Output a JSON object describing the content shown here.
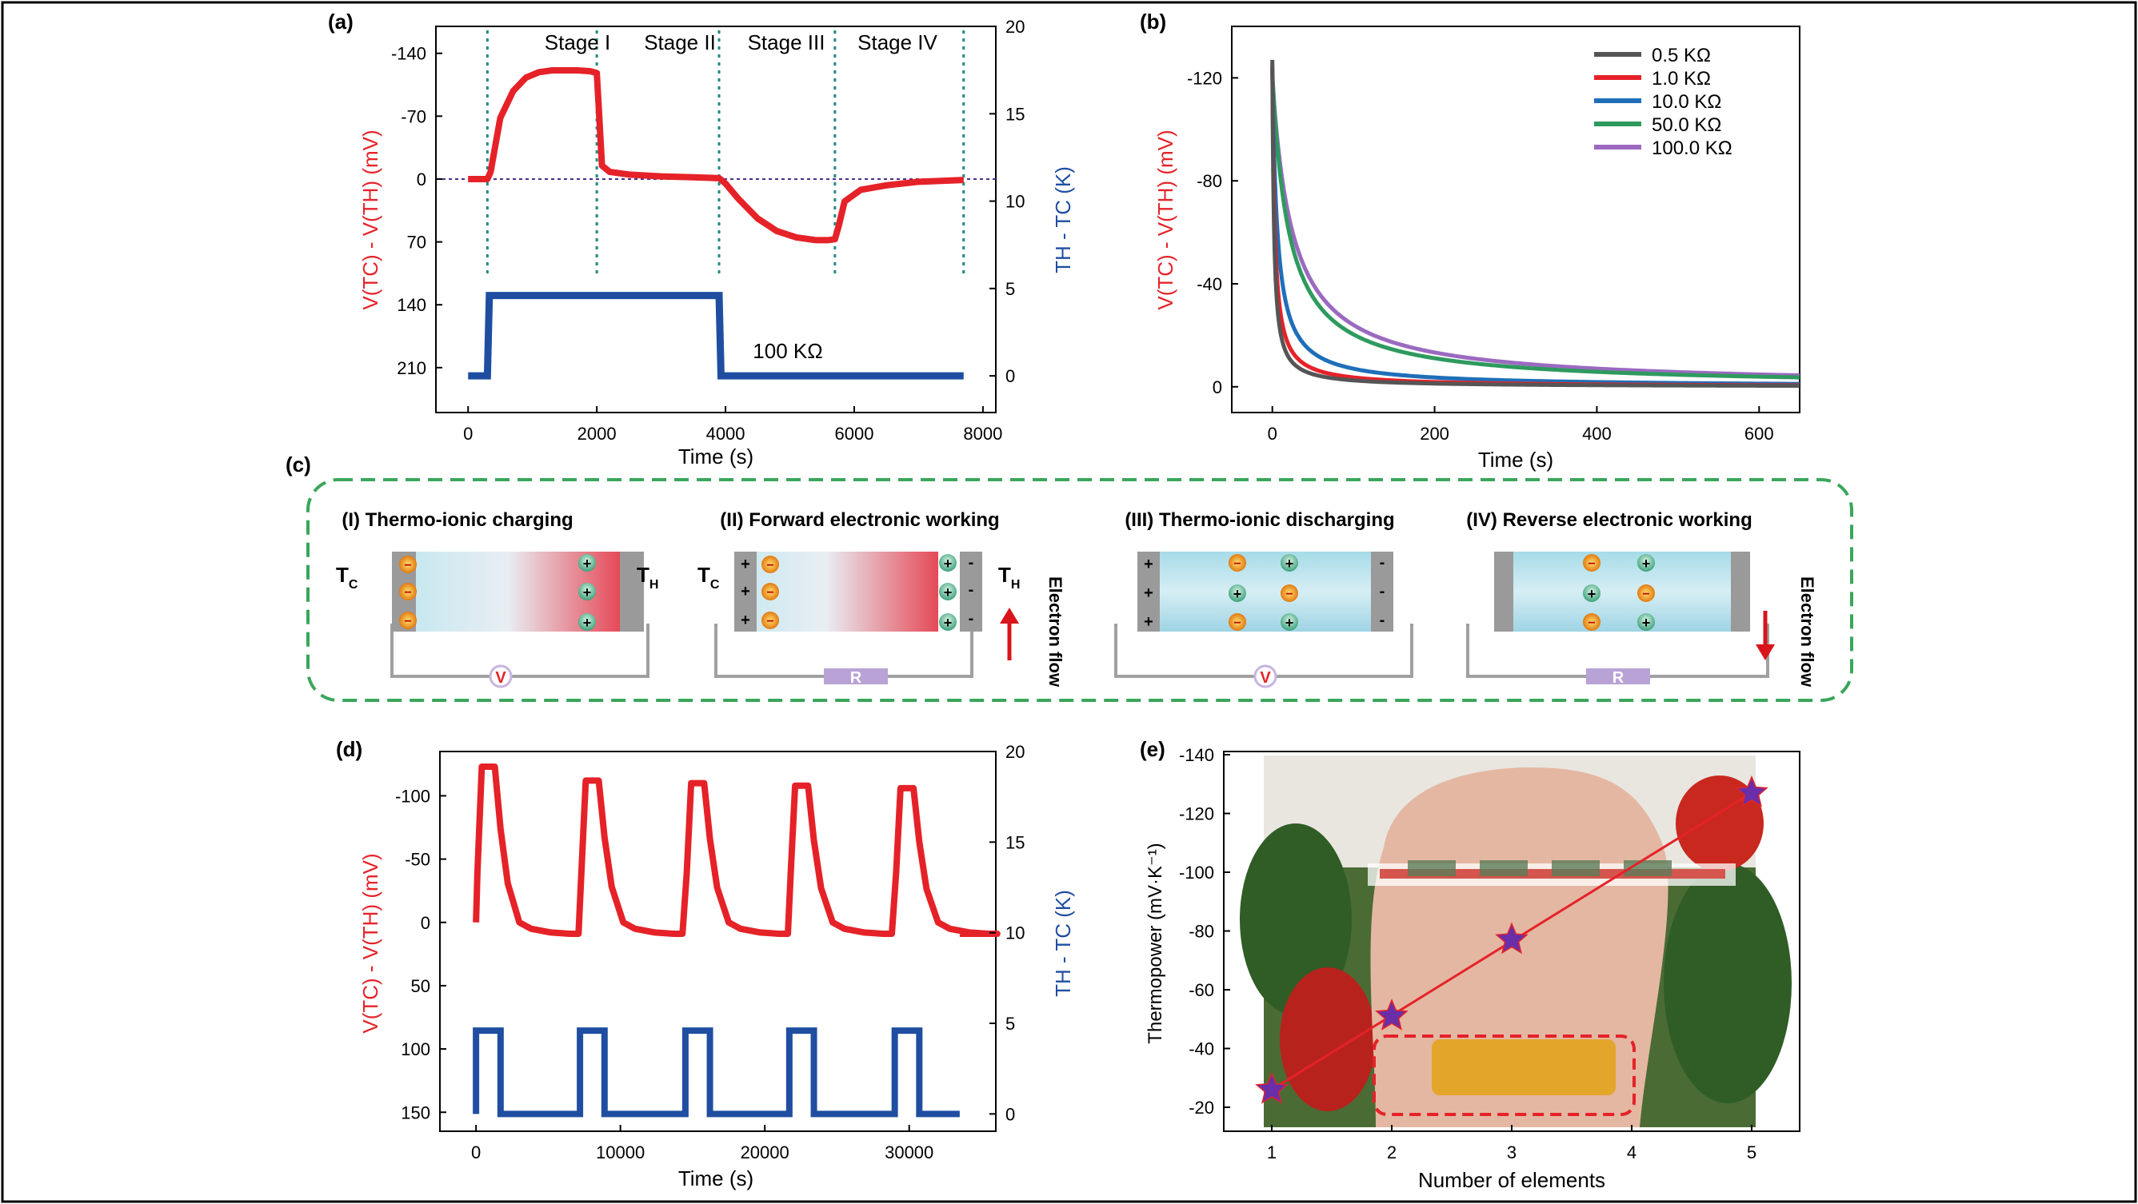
{
  "colors": {
    "red": "#e52228",
    "blue": "#1f4ea1",
    "teal": "#1f8a80",
    "purple_dotted": "#4b2f8f",
    "green_dash": "#3aa65b",
    "gray_electrode": "#9a9a9a",
    "star": "#6a2fa8",
    "photo_bg": "#3c5f2a"
  },
  "panels": {
    "a": {
      "label": "(a)",
      "stages": [
        "Stage I",
        "Stage II",
        "Stage III",
        "Stage IV"
      ],
      "resistance_label": "100 KΩ",
      "xlabel": "Time (s)",
      "ylabel_left": "V(TC) - V(TH) (mV)",
      "ylabel_right": "TH - TC (K)"
    },
    "b": {
      "label": "(b)",
      "xlabel": "Time (s)",
      "ylabel": "V(TC) - V(TH) (mV)"
    },
    "c": {
      "label": "(c)",
      "steps": [
        {
          "title": "(I) Thermo-ionic charging",
          "meter": "V",
          "left_label": "T",
          "left_sub": "C",
          "right_label": "T",
          "right_sub": "H"
        },
        {
          "title": "(II) Forward electronic working",
          "meter": "R",
          "left_label": "T",
          "left_sub": "C",
          "right_label": "T",
          "right_sub": "H",
          "flow": "Electron flow"
        },
        {
          "title": "(III) Thermo-ionic discharging",
          "meter": "V"
        },
        {
          "title": "(IV) Reverse electronic working",
          "meter": "R",
          "flow": "Electron flow"
        }
      ]
    },
    "d": {
      "label": "(d)",
      "xlabel": "Time (s)",
      "ylabel_left": "V(TC) - V(TH) (mV)",
      "ylabel_right": "TH - TC (K)"
    },
    "e": {
      "label": "(e)",
      "xlabel": "Number of elements",
      "ylabel": "Thermopower (mV·K⁻¹)"
    }
  },
  "chart_data": [
    {
      "panel": "a",
      "type": "line",
      "xlabel": "Time (s)",
      "ylabel": "V(TC) - V(TH) (mV)",
      "y2label": "TH - TC (K)",
      "xlim": [
        -500,
        8200
      ],
      "ylim": [
        -170,
        260
      ],
      "y_inverted": true,
      "y2lim": [
        -1,
        20
      ],
      "xticks": [
        "0",
        "2000",
        "4000",
        "6000",
        "8000"
      ],
      "yticks": [
        "-140",
        "-70",
        "0",
        "70",
        "140",
        "210"
      ],
      "y2ticks": [
        "0",
        "5",
        "10",
        "15",
        "20"
      ],
      "stage_boundaries": [
        300,
        2000,
        3900,
        5700,
        7700
      ],
      "reference_line": 0,
      "series": [
        {
          "name": "",
          "axis": "left",
          "color": "#e52228",
          "x": [
            0,
            300,
            350,
            500,
            700,
            900,
            1100,
            1300,
            1500,
            1700,
            1900,
            2000,
            2030,
            2080,
            2200,
            2500,
            3000,
            3500,
            3900,
            4000,
            4200,
            4500,
            4800,
            5100,
            5400,
            5600,
            5700,
            5760,
            5850,
            6100,
            6500,
            7000,
            7700
          ],
          "y": [
            0,
            0,
            -8,
            -68,
            -98,
            -113,
            -119,
            -121,
            -121,
            -121,
            -120,
            -118,
            -80,
            -15,
            -8,
            -5,
            -3,
            -2,
            -1,
            5,
            22,
            44,
            58,
            65,
            68,
            68,
            67,
            52,
            25,
            12,
            7,
            3,
            1
          ]
        },
        {
          "name": "",
          "axis": "right",
          "color": "#1f4ea1",
          "x": [
            0,
            300,
            330,
            3900,
            3930,
            7700
          ],
          "y": [
            0,
            0,
            4.6,
            4.6,
            0,
            0
          ]
        }
      ]
    },
    {
      "panel": "b",
      "type": "line",
      "xlabel": "Time (s)",
      "ylabel": "V(TC) - V(TH) (mV)",
      "xlim": [
        -50,
        650
      ],
      "ylim": [
        -140,
        10
      ],
      "y_inverted": true,
      "xticks": [
        "0",
        "200",
        "400",
        "600"
      ],
      "yticks": [
        "-120",
        "-80",
        "-40",
        "0"
      ],
      "legend": "top-right",
      "series": [
        {
          "name": "0.5    KΩ",
          "color": "#555555",
          "tau": 0.5,
          "a": 2,
          "y0": -127
        },
        {
          "name": "1.0    KΩ",
          "color": "#e52228",
          "tau": 1,
          "a": 3,
          "y0": -125
        },
        {
          "name": "10.0  KΩ",
          "color": "#1f6fb8",
          "tau": 8,
          "a": 6,
          "y0": -124
        },
        {
          "name": "50.0  KΩ",
          "color": "#2e9a5e",
          "tau": 20,
          "a": 20,
          "y0": -122
        },
        {
          "name": "100.0 KΩ",
          "color": "#9b6ac0",
          "tau": 40,
          "a": 25,
          "y0": -120
        }
      ]
    },
    {
      "panel": "d",
      "type": "line",
      "xlabel": "Time (s)",
      "ylabel": "V(TC) - V(TH) (mV)",
      "y2label": "TH - TC (K)",
      "xlim": [
        -2500,
        36000
      ],
      "ylim": [
        -135,
        165
      ],
      "y_inverted": true,
      "y2lim": [
        -1,
        20
      ],
      "xticks": [
        "0",
        "10000",
        "20000",
        "30000"
      ],
      "yticks": [
        "-100",
        "-50",
        "0",
        "50",
        "100",
        "150"
      ],
      "y2ticks": [
        "0",
        "5",
        "10",
        "15",
        "20"
      ],
      "cycle_starts": [
        0,
        7200,
        14500,
        21700,
        29000
      ],
      "cycle_peaks": [
        -123,
        -112,
        -110,
        -108,
        -106
      ],
      "series": [
        {
          "name": "",
          "axis": "left",
          "color": "#e52228"
        },
        {
          "name": "",
          "axis": "right",
          "color": "#1f4ea1",
          "high": 4.6,
          "low": 0
        }
      ]
    },
    {
      "panel": "e",
      "type": "scatter",
      "xlabel": "Number of elements",
      "ylabel": "Thermopower (mV·K⁻¹)",
      "xlim": [
        0.6,
        5.4
      ],
      "ylim": [
        -10,
        -140
      ],
      "y_inverted": true,
      "xticks": [
        "1",
        "2",
        "3",
        "4",
        "5"
      ],
      "yticks": [
        "-140",
        "-120",
        "-100",
        "-80",
        "-60",
        "-40",
        "-20"
      ],
      "x": [
        1,
        2,
        3,
        4,
        5
      ],
      "y": [
        -26,
        -51,
        -77,
        null,
        -127
      ],
      "fit_line": [
        [
          1,
          -26
        ],
        [
          5,
          -127
        ]
      ]
    }
  ]
}
